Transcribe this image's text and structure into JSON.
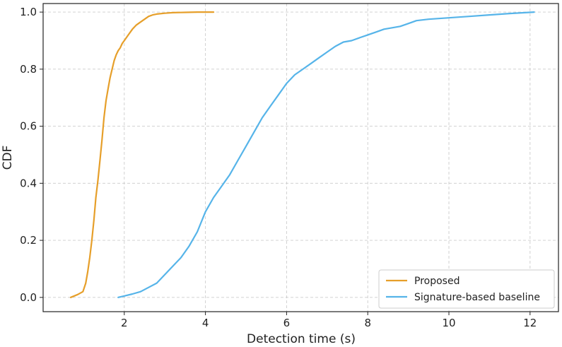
{
  "chart_data": {
    "type": "line",
    "title": "",
    "xlabel": "Detection time (s)",
    "ylabel": "CDF",
    "xlim": [
      0.0,
      12.7
    ],
    "ylim": [
      -0.05,
      1.03
    ],
    "xticks": [
      2,
      4,
      6,
      8,
      10,
      12
    ],
    "yticks": [
      0.0,
      0.2,
      0.4,
      0.6,
      0.8,
      1.0
    ],
    "xtick_labels": [
      "2",
      "4",
      "6",
      "8",
      "10",
      "12"
    ],
    "ytick_labels": [
      "0.0",
      "0.2",
      "0.4",
      "0.6",
      "0.8",
      "1.0"
    ],
    "grid": true,
    "legend_position": "bottom-right",
    "series": [
      {
        "name": "Proposed",
        "color": "#E69F2A",
        "x": [
          0.68,
          0.85,
          0.98,
          1.05,
          1.1,
          1.15,
          1.2,
          1.25,
          1.3,
          1.35,
          1.4,
          1.45,
          1.5,
          1.55,
          1.6,
          1.65,
          1.7,
          1.75,
          1.8,
          1.85,
          1.9,
          1.95,
          2.0,
          2.1,
          2.2,
          2.3,
          2.4,
          2.5,
          2.6,
          2.7,
          2.8,
          3.0,
          3.2,
          3.5,
          3.8,
          4.2
        ],
        "y": [
          0.0,
          0.01,
          0.02,
          0.05,
          0.09,
          0.14,
          0.2,
          0.27,
          0.35,
          0.41,
          0.48,
          0.55,
          0.63,
          0.69,
          0.73,
          0.77,
          0.8,
          0.83,
          0.85,
          0.865,
          0.875,
          0.89,
          0.9,
          0.92,
          0.94,
          0.955,
          0.965,
          0.975,
          0.985,
          0.99,
          0.993,
          0.996,
          0.998,
          0.999,
          1.0,
          1.0
        ]
      },
      {
        "name": "Signature-based baseline",
        "color": "#56B4E9",
        "x": [
          1.85,
          2.0,
          2.2,
          2.4,
          2.6,
          2.8,
          3.0,
          3.2,
          3.4,
          3.6,
          3.8,
          4.0,
          4.2,
          4.4,
          4.6,
          4.8,
          5.0,
          5.2,
          5.4,
          5.6,
          5.8,
          6.0,
          6.2,
          6.4,
          6.6,
          6.8,
          7.0,
          7.2,
          7.4,
          7.6,
          7.8,
          8.0,
          8.2,
          8.4,
          8.6,
          8.8,
          9.0,
          9.2,
          9.5,
          10.0,
          10.5,
          11.0,
          11.5,
          12.1
        ],
        "y": [
          0.0,
          0.005,
          0.012,
          0.02,
          0.035,
          0.05,
          0.08,
          0.11,
          0.14,
          0.18,
          0.23,
          0.3,
          0.35,
          0.39,
          0.43,
          0.48,
          0.53,
          0.58,
          0.63,
          0.67,
          0.71,
          0.75,
          0.78,
          0.8,
          0.82,
          0.84,
          0.86,
          0.88,
          0.895,
          0.9,
          0.91,
          0.92,
          0.93,
          0.94,
          0.945,
          0.95,
          0.96,
          0.97,
          0.975,
          0.98,
          0.985,
          0.99,
          0.995,
          1.0
        ]
      }
    ]
  }
}
